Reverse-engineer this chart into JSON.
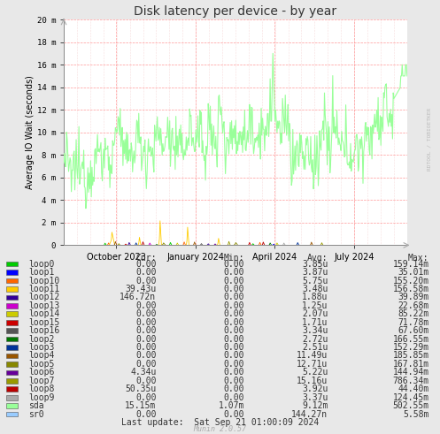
{
  "title": "Disk latency per device - by year",
  "ylabel": "Average IO Wait (seconds)",
  "background_color": "#e8e8e8",
  "plot_bg_color": "#ffffff",
  "ytick_labels": [
    "0",
    "2 m",
    "4 m",
    "6 m",
    "8 m",
    "10 m",
    "12 m",
    "14 m",
    "16 m",
    "18 m",
    "20 m"
  ],
  "ytick_values": [
    0,
    0.002,
    0.004,
    0.006,
    0.008,
    0.01,
    0.012,
    0.014,
    0.016,
    0.018,
    0.02
  ],
  "xtick_labels": [
    "October 2023",
    "January 2024",
    "April 2024",
    "July 2024"
  ],
  "xtick_pos": [
    0.153,
    0.385,
    0.615,
    0.846
  ],
  "n_minor_vlines": 26,
  "watermark": "RDTOOL / TOBIOETKER",
  "munin_version": "Munin 2.0.57",
  "last_update": "Last update:  Sat Sep 21 01:00:09 2024",
  "legend_entries": [
    {
      "name": "loop0",
      "color": "#00cc00",
      "cur": "0.00",
      "min": "0.00",
      "avg": "3.85u",
      "max": "159.14m"
    },
    {
      "name": "loop1",
      "color": "#0000ff",
      "cur": "0.00",
      "min": "0.00",
      "avg": "3.87u",
      "max": "35.01m"
    },
    {
      "name": "loop10",
      "color": "#ff6600",
      "cur": "0.00",
      "min": "0.00",
      "avg": "5.75u",
      "max": "155.20m"
    },
    {
      "name": "loop11",
      "color": "#ffcc00",
      "cur": "39.43u",
      "min": "0.00",
      "avg": "3.48u",
      "max": "156.58m"
    },
    {
      "name": "loop12",
      "color": "#330099",
      "cur": "146.72n",
      "min": "0.00",
      "avg": "1.88u",
      "max": "39.89m"
    },
    {
      "name": "loop13",
      "color": "#cc00cc",
      "cur": "0.00",
      "min": "0.00",
      "avg": "1.25u",
      "max": "22.68m"
    },
    {
      "name": "loop14",
      "color": "#cccc00",
      "cur": "0.00",
      "min": "0.00",
      "avg": "2.07u",
      "max": "85.22m"
    },
    {
      "name": "loop15",
      "color": "#cc0000",
      "cur": "0.00",
      "min": "0.00",
      "avg": "1.71u",
      "max": "71.78m"
    },
    {
      "name": "loop16",
      "color": "#555555",
      "cur": "0.00",
      "min": "0.00",
      "avg": "3.34u",
      "max": "67.60m"
    },
    {
      "name": "loop2",
      "color": "#007700",
      "cur": "0.00",
      "min": "0.00",
      "avg": "2.72u",
      "max": "166.55m"
    },
    {
      "name": "loop3",
      "color": "#003399",
      "cur": "0.00",
      "min": "0.00",
      "avg": "2.51u",
      "max": "152.29m"
    },
    {
      "name": "loop4",
      "color": "#995500",
      "cur": "0.00",
      "min": "0.00",
      "avg": "11.49u",
      "max": "185.85m"
    },
    {
      "name": "loop5",
      "color": "#888800",
      "cur": "0.00",
      "min": "0.00",
      "avg": "12.71u",
      "max": "167.81m"
    },
    {
      "name": "loop6",
      "color": "#660099",
      "cur": "4.34u",
      "min": "0.00",
      "avg": "5.22u",
      "max": "144.94m"
    },
    {
      "name": "loop7",
      "color": "#999900",
      "cur": "0.00",
      "min": "0.00",
      "avg": "15.16u",
      "max": "786.34m"
    },
    {
      "name": "loop8",
      "color": "#bb0000",
      "cur": "50.35u",
      "min": "0.00",
      "avg": "3.92u",
      "max": "44.40m"
    },
    {
      "name": "loop9",
      "color": "#aaaaaa",
      "cur": "0.00",
      "min": "0.00",
      "avg": "3.37u",
      "max": "124.45m"
    },
    {
      "name": "sda",
      "color": "#99ff99",
      "cur": "15.15m",
      "min": "1.07m",
      "avg": "9.12m",
      "max": "502.55m"
    },
    {
      "name": "sr0",
      "color": "#99ccff",
      "cur": "0.00",
      "min": "0.00",
      "avg": "144.27n",
      "max": "5.58m"
    }
  ]
}
